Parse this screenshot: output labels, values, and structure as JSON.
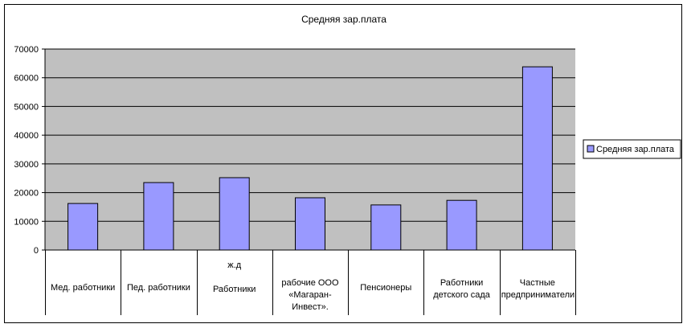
{
  "chart_data": {
    "type": "bar",
    "title": "Средняя зар.плата",
    "xlabel": "",
    "ylabel": "",
    "ylim": [
      0,
      70000
    ],
    "yticks": [
      0,
      10000,
      20000,
      30000,
      40000,
      50000,
      60000,
      70000
    ],
    "grid": true,
    "legend_position": "right",
    "categories": [
      "Мед. работники",
      "Пед. работники",
      "ж.д\n\nРаботники",
      "рабочие  ООО «Магаран-Инвест».",
      "Пенсионеры",
      "Работники детского сада",
      "Частные предприниматели"
    ],
    "series": [
      {
        "name": "Средняя зар.плата",
        "values": [
          16200,
          23500,
          25200,
          18200,
          15700,
          17300,
          63800
        ]
      }
    ],
    "colors": {
      "plot_background": "#c0c0c0",
      "bar_fill": "#9999ff",
      "bar_stroke": "#000000",
      "gridline": "#000000"
    }
  }
}
